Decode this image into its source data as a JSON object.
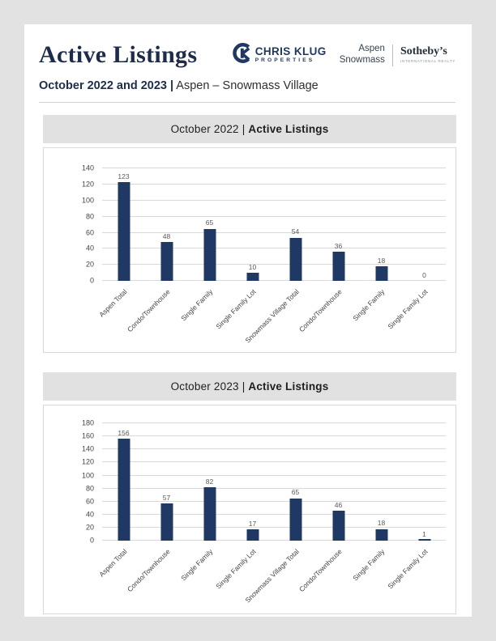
{
  "page": {
    "title": "Active Listings",
    "subtitle_bold": "October 2022 and 2023 |",
    "subtitle_rest": " Aspen – Snowmass Village"
  },
  "logos": {
    "chris_klug": {
      "name": "CHRIS KLUG",
      "sub": "PROPERTIES"
    },
    "aspen_snowmass": {
      "line1": "Aspen",
      "line2": "Snowmass"
    },
    "sothebys": {
      "name": "Sotheby’s",
      "sub": "INTERNATIONAL REALTY"
    }
  },
  "colors": {
    "accent_navy": "#1f3864",
    "gridline": "#d9d9d9",
    "panel_header_bg": "#e1e1e1",
    "page_background": "#e2e2e2"
  },
  "chart_data": [
    {
      "type": "bar",
      "title": "October 2022 | Active Listings",
      "title_regular": "October 2022 | ",
      "title_bold": "Active Listings",
      "categories": [
        "Aspen Total",
        "Condo/Townhouse",
        "Single Family",
        "Single Family Lot",
        "Snowmass Village Total",
        "Condo/Townhouse",
        "Single Family",
        "Single Family Lot"
      ],
      "values": [
        123,
        48,
        65,
        10,
        54,
        36,
        18,
        0
      ],
      "xlabel": "",
      "ylabel": "",
      "ylim": [
        0,
        140
      ],
      "ytick_step": 20,
      "grid": true,
      "legend": "none",
      "bar_color": "#1f3864"
    },
    {
      "type": "bar",
      "title": "October 2023 | Active Listings",
      "title_regular": "October 2023 | ",
      "title_bold": "Active Listings",
      "categories": [
        "Aspen Total",
        "Condo/Townhouse",
        "Single Family",
        "Single Family Lot",
        "Snowmass Village Total",
        "Condo/Townhouse",
        "Single Family",
        "Single Family Lot"
      ],
      "values": [
        156,
        57,
        82,
        17,
        65,
        46,
        18,
        1
      ],
      "xlabel": "",
      "ylabel": "",
      "ylim": [
        0,
        180
      ],
      "ytick_step": 20,
      "grid": true,
      "legend": "none",
      "bar_color": "#1f3864"
    }
  ]
}
